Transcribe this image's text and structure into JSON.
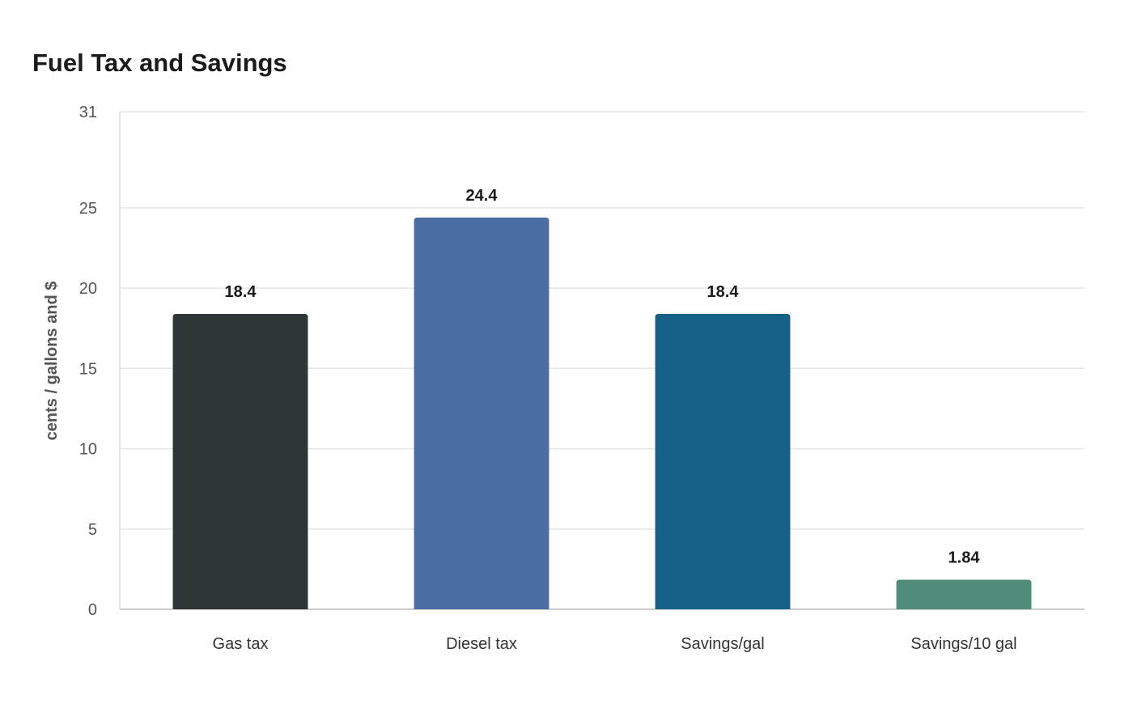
{
  "chart_data": {
    "type": "bar",
    "title": "Fuel Tax and Savings",
    "xlabel": "",
    "ylabel": "cents / gallons and $",
    "categories": [
      "Gas tax",
      "Diesel tax",
      "Savings/gal",
      "Savings/10 gal"
    ],
    "values": [
      18.4,
      24.4,
      18.4,
      1.84
    ],
    "data_labels": [
      "18.4",
      "24.4",
      "18.4",
      "1.84"
    ],
    "ylim": [
      0,
      31
    ],
    "yticks": [
      0,
      5,
      10,
      15,
      20,
      25,
      31
    ],
    "bar_colors": [
      "#2e3638",
      "#4a6ea3",
      "#176087",
      "#4f8c7a"
    ],
    "grid": true,
    "legend": "none"
  }
}
